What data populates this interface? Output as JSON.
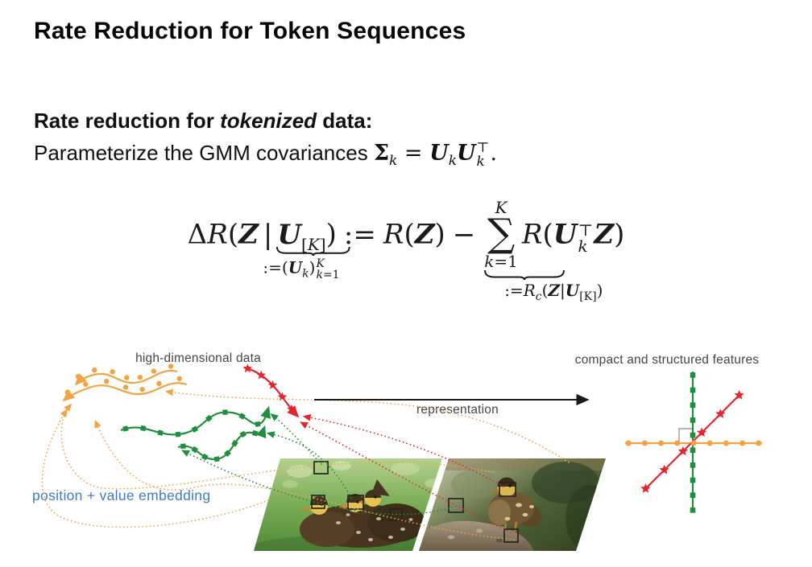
{
  "slide": {
    "title": "Rate Reduction for Token Sequences",
    "body": {
      "line1": {
        "prefix": "Rate reduction for ",
        "emphasis": "tokenized",
        "suffix": " data:"
      },
      "line2": {
        "text": "Parameterize the GMM covariances ",
        "math": {
          "Sigma": "Σ",
          "k1": "k",
          "eq": " = ",
          "U1": "U",
          "k2": "k",
          "U2": "U",
          "top": "⊤",
          "k3": "k",
          "period": "."
        }
      }
    },
    "formula": {
      "delta": "Δ",
      "R1": "R",
      "open1": "(",
      "Z1": "Z",
      "bar": "|",
      "U1": "U",
      "sub1_open": "[",
      "sub1_K": "K",
      "sub1_close": "]",
      "close1": ")",
      "assign": ":=",
      "R2": "R",
      "open2": "(",
      "Z2": "Z",
      "close2": ")",
      "minus": "−",
      "sum": {
        "top": "K",
        "sigma": "∑",
        "bot_k": "k",
        "bot_eq": "=1"
      },
      "R3": "R",
      "open3": "(",
      "U2": "U",
      "sup2": "⊤",
      "sub2": "k",
      "Z3": "Z",
      "close3": ")",
      "underbrace1": {
        "assign": ":=(",
        "U": "U",
        "k": "k",
        "close": ")",
        "sup": "K",
        "sub_k": "k",
        "sub_eq": "=1"
      },
      "underbrace2": {
        "assign": ":=",
        "R": "R",
        "c": "c",
        "open": "(",
        "Z": "Z",
        "bar": "|",
        "U": "U",
        "sub": "[K]",
        "close": ")"
      }
    },
    "figure": {
      "labels": {
        "left": "high-dimensional data",
        "arrow": "representation",
        "right": "compact and structured features",
        "embedding": "position + value embedding"
      },
      "colors": {
        "orange": "#F3A342",
        "green": "#1F8F3F",
        "red": "#E6242B",
        "blue": "#3E7CC4",
        "label_gray": "#454545",
        "arrow_black": "#1A1A1A",
        "angle_gray": "#9A9A9A"
      }
    }
  }
}
